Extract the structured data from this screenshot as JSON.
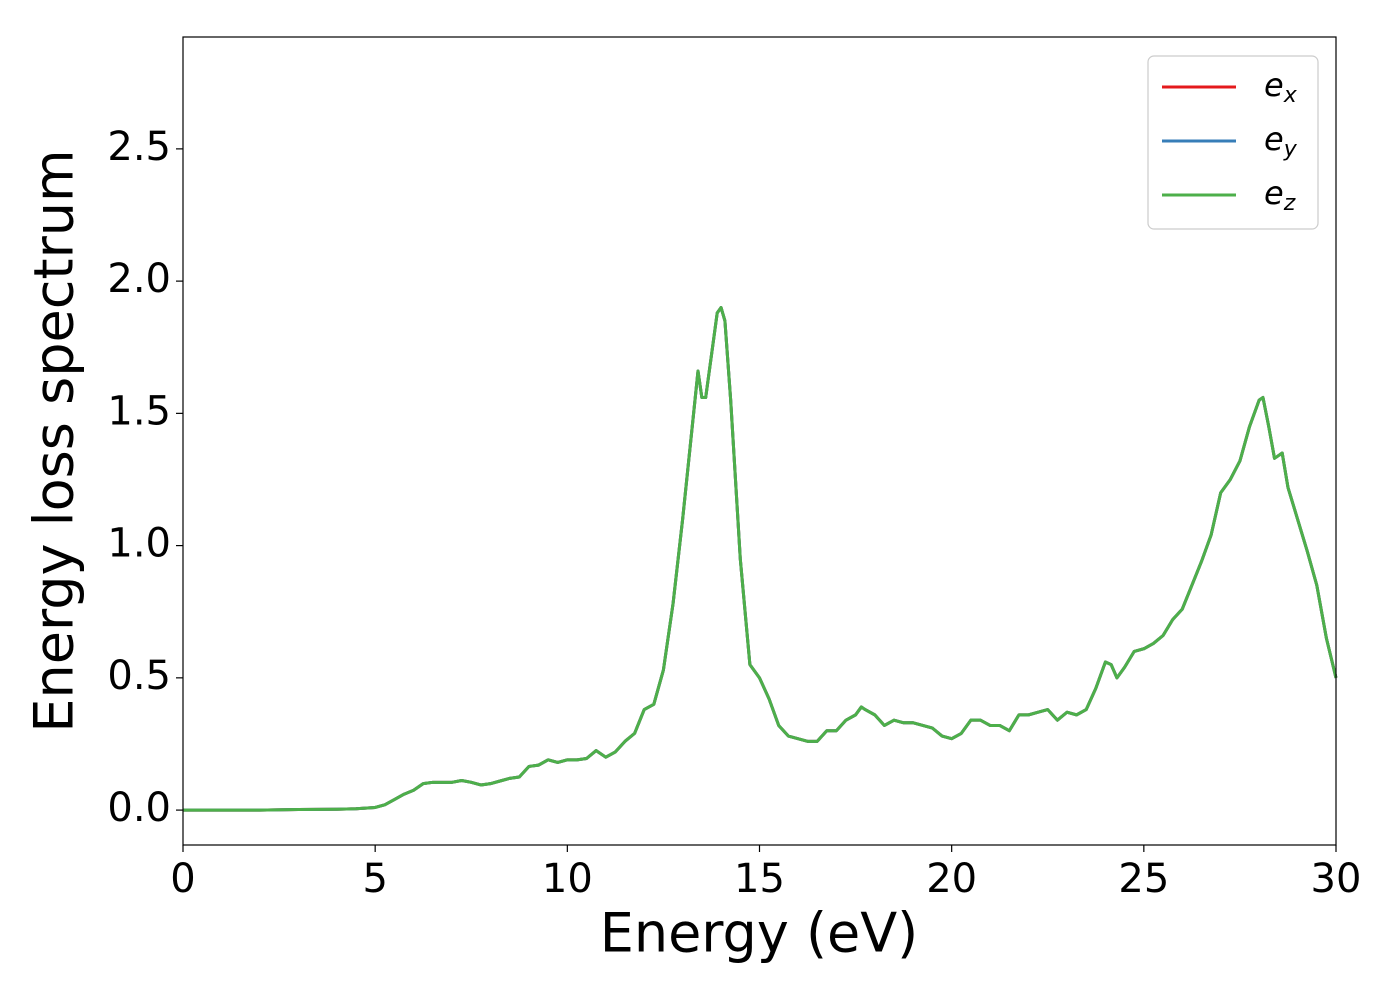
{
  "chart_data": {
    "type": "line",
    "xlabel": "Energy (eV)",
    "ylabel": "Energy loss spectrum",
    "x": [
      0,
      1,
      2,
      3,
      4,
      4.5,
      5,
      5.25,
      5.5,
      5.75,
      6,
      6.25,
      6.5,
      7,
      7.25,
      7.5,
      7.75,
      8,
      8.25,
      8.5,
      8.75,
      9,
      9.25,
      9.5,
      9.75,
      10,
      10.25,
      10.5,
      10.75,
      11,
      11.25,
      11.5,
      11.75,
      12,
      12.25,
      12.5,
      12.75,
      13,
      13.25,
      13.4,
      13.5,
      13.6,
      13.75,
      13.9,
      14,
      14.1,
      14.25,
      14.5,
      14.75,
      15,
      15.25,
      15.5,
      15.75,
      16,
      16.25,
      16.5,
      16.75,
      17,
      17.25,
      17.5,
      17.65,
      17.75,
      18,
      18.25,
      18.5,
      18.75,
      19,
      19.25,
      19.5,
      19.75,
      20,
      20.25,
      20.5,
      20.75,
      21,
      21.25,
      21.5,
      21.75,
      22,
      22.25,
      22.5,
      22.75,
      23,
      23.25,
      23.5,
      23.75,
      24,
      24.15,
      24.3,
      24.5,
      24.75,
      25,
      25.25,
      25.5,
      25.75,
      26,
      26.25,
      26.5,
      26.75,
      27,
      27.25,
      27.5,
      27.75,
      28,
      28.1,
      28.25,
      28.4,
      28.5,
      28.6,
      28.75,
      29,
      29.25,
      29.5,
      29.75,
      30
    ],
    "series": [
      {
        "name": "ex",
        "color": "#e41a1c",
        "values": [
          0,
          0,
          0,
          0.002,
          0.003,
          0.005,
          0.01,
          0.02,
          0.04,
          0.06,
          0.075,
          0.1,
          0.105,
          0.105,
          0.112,
          0.105,
          0.095,
          0.1,
          0.11,
          0.12,
          0.125,
          0.165,
          0.17,
          0.19,
          0.18,
          0.19,
          0.19,
          0.195,
          0.225,
          0.2,
          0.22,
          0.26,
          0.29,
          0.38,
          0.4,
          0.53,
          0.78,
          1.1,
          1.45,
          1.66,
          1.56,
          1.56,
          1.72,
          1.88,
          1.9,
          1.85,
          1.55,
          0.95,
          0.55,
          0.5,
          0.42,
          0.32,
          0.28,
          0.27,
          0.26,
          0.26,
          0.3,
          0.3,
          0.34,
          0.36,
          0.39,
          0.38,
          0.36,
          0.32,
          0.34,
          0.33,
          0.33,
          0.32,
          0.31,
          0.28,
          0.27,
          0.29,
          0.34,
          0.34,
          0.32,
          0.32,
          0.3,
          0.36,
          0.36,
          0.37,
          0.38,
          0.34,
          0.37,
          0.36,
          0.38,
          0.46,
          0.56,
          0.55,
          0.5,
          0.54,
          0.6,
          0.61,
          0.63,
          0.66,
          0.72,
          0.76,
          0.85,
          0.94,
          1.04,
          1.2,
          1.25,
          1.32,
          1.45,
          1.55,
          1.56,
          1.45,
          1.33,
          1.34,
          1.35,
          1.22,
          1.1,
          0.98,
          0.85,
          0.65,
          0.5
        ]
      },
      {
        "name": "ey",
        "color": "#377eb8",
        "values": [
          0,
          0,
          0,
          0.002,
          0.003,
          0.005,
          0.01,
          0.02,
          0.04,
          0.06,
          0.075,
          0.1,
          0.105,
          0.105,
          0.112,
          0.105,
          0.095,
          0.1,
          0.11,
          0.12,
          0.125,
          0.165,
          0.17,
          0.19,
          0.18,
          0.19,
          0.19,
          0.195,
          0.225,
          0.2,
          0.22,
          0.26,
          0.29,
          0.38,
          0.4,
          0.53,
          0.78,
          1.1,
          1.45,
          1.66,
          1.56,
          1.56,
          1.72,
          1.88,
          1.9,
          1.85,
          1.55,
          0.95,
          0.55,
          0.5,
          0.42,
          0.32,
          0.28,
          0.27,
          0.26,
          0.26,
          0.3,
          0.3,
          0.34,
          0.36,
          0.39,
          0.38,
          0.36,
          0.32,
          0.34,
          0.33,
          0.33,
          0.32,
          0.31,
          0.28,
          0.27,
          0.29,
          0.34,
          0.34,
          0.32,
          0.32,
          0.3,
          0.36,
          0.36,
          0.37,
          0.38,
          0.34,
          0.37,
          0.36,
          0.38,
          0.46,
          0.56,
          0.55,
          0.5,
          0.54,
          0.6,
          0.61,
          0.63,
          0.66,
          0.72,
          0.76,
          0.85,
          0.94,
          1.04,
          1.2,
          1.25,
          1.32,
          1.45,
          1.55,
          1.56,
          1.45,
          1.33,
          1.34,
          1.35,
          1.22,
          1.1,
          0.98,
          0.85,
          0.65,
          0.5
        ]
      },
      {
        "name": "ez",
        "color": "#4daf4a",
        "values": [
          0,
          0,
          0,
          0.002,
          0.003,
          0.005,
          0.01,
          0.02,
          0.04,
          0.06,
          0.075,
          0.1,
          0.105,
          0.105,
          0.112,
          0.105,
          0.095,
          0.1,
          0.11,
          0.12,
          0.125,
          0.165,
          0.17,
          0.19,
          0.18,
          0.19,
          0.19,
          0.195,
          0.225,
          0.2,
          0.22,
          0.26,
          0.29,
          0.38,
          0.4,
          0.53,
          0.78,
          1.1,
          1.45,
          1.66,
          1.56,
          1.56,
          1.72,
          1.88,
          1.9,
          1.85,
          1.55,
          0.95,
          0.55,
          0.5,
          0.42,
          0.32,
          0.28,
          0.27,
          0.26,
          0.26,
          0.3,
          0.3,
          0.34,
          0.36,
          0.39,
          0.38,
          0.36,
          0.32,
          0.34,
          0.33,
          0.33,
          0.32,
          0.31,
          0.28,
          0.27,
          0.29,
          0.34,
          0.34,
          0.32,
          0.32,
          0.3,
          0.36,
          0.36,
          0.37,
          0.38,
          0.34,
          0.37,
          0.36,
          0.38,
          0.46,
          0.56,
          0.55,
          0.5,
          0.54,
          0.6,
          0.61,
          0.63,
          0.66,
          0.72,
          0.76,
          0.85,
          0.94,
          1.04,
          1.2,
          1.25,
          1.32,
          1.45,
          1.55,
          1.56,
          1.45,
          1.33,
          1.34,
          1.35,
          1.22,
          1.1,
          0.98,
          0.85,
          0.65,
          0.5
        ]
      }
    ],
    "xlim": [
      0,
      30
    ],
    "xticks": [
      0,
      5,
      10,
      15,
      20,
      25,
      30
    ],
    "ylim": [
      -0.132,
      2.923
    ],
    "yticks": [
      {
        "value": 0,
        "label": "0.0"
      },
      0.5,
      {
        "value": 1,
        "label": "1.0"
      },
      1.5,
      {
        "value": 2,
        "label": "2.0"
      },
      2.5
    ],
    "legend": "upper right",
    "grid": false
  }
}
